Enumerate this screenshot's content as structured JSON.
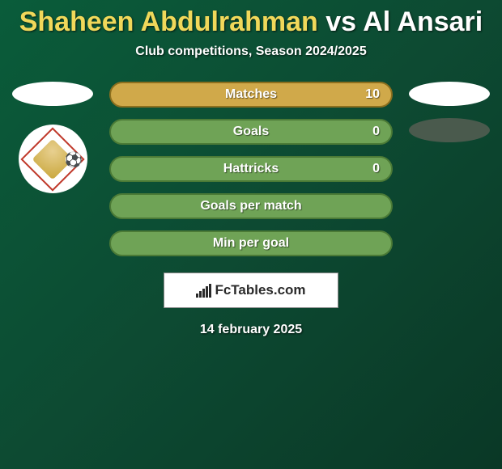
{
  "title": {
    "player1": "Shaheen Abdulrahman",
    "vs": "vs",
    "player2": "Al Ansari"
  },
  "subtitle": "Club competitions, Season 2024/2025",
  "stats": [
    {
      "label": "Matches",
      "value": "10",
      "bg": "#d0a94a",
      "border": "#8c6f1e"
    },
    {
      "label": "Goals",
      "value": "0",
      "bg": "#6fa356",
      "border": "#4b7a36"
    },
    {
      "label": "Hattricks",
      "value": "0",
      "bg": "#6fa356",
      "border": "#4b7a36"
    },
    {
      "label": "Goals per match",
      "value": "",
      "bg": "#6fa356",
      "border": "#4b7a36"
    },
    {
      "label": "Min per goal",
      "value": "",
      "bg": "#6fa356",
      "border": "#4b7a36"
    }
  ],
  "site_label": "FcTables.com",
  "date": "14 february 2025",
  "colors": {
    "title_player1": "#f0d85a",
    "title_rest": "#ffffff",
    "background": "#0a5c3a"
  }
}
